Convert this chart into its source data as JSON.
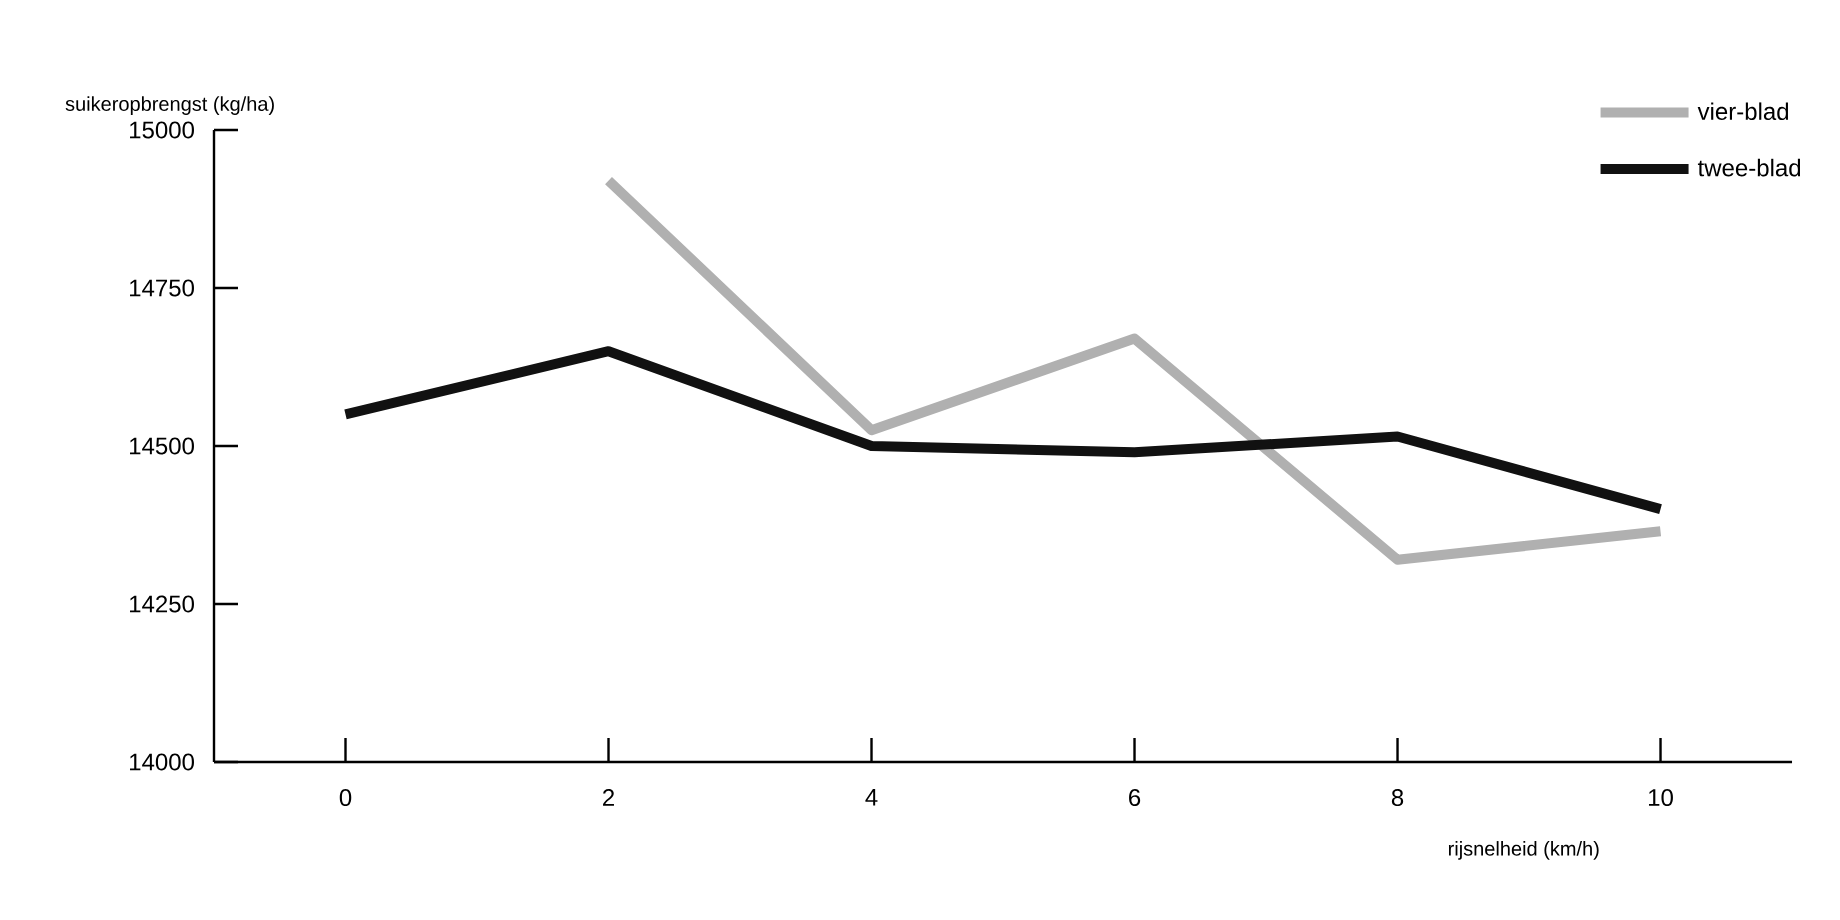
{
  "chart_data": {
    "type": "line",
    "xlabel": "rijsnelheid (km/h)",
    "ylabel": "suikeropbrengst (kg/ha)",
    "x": [
      0,
      2,
      4,
      6,
      8,
      10
    ],
    "series": [
      {
        "name": "vier-blad",
        "color": "#b0b0b0",
        "values": [
          null,
          14920,
          14525,
          14670,
          14320,
          14365
        ]
      },
      {
        "name": "twee-blad",
        "color": "#111111",
        "values": [
          14550,
          14650,
          14500,
          14490,
          14515,
          14400
        ]
      }
    ],
    "xlim": [
      -1,
      11
    ],
    "ylim": [
      14000,
      15000
    ],
    "xticks": [
      0,
      2,
      4,
      6,
      8,
      10
    ],
    "yticks": [
      14000,
      14250,
      14500,
      14750,
      15000
    ],
    "grid": false,
    "legend": "top right"
  }
}
